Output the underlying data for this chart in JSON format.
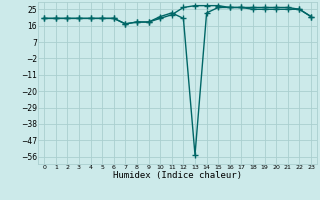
{
  "xlabel": "Humidex (Indice chaleur)",
  "x": [
    0,
    1,
    2,
    3,
    4,
    5,
    6,
    7,
    8,
    9,
    10,
    11,
    12,
    13,
    14,
    15,
    16,
    17,
    18,
    19,
    20,
    21,
    22,
    23
  ],
  "y_line1": [
    20,
    20,
    20,
    20,
    20,
    20,
    20,
    17,
    18,
    18,
    20,
    22,
    26,
    27,
    27,
    27,
    26,
    26,
    26,
    26,
    26,
    26,
    25,
    21
  ],
  "y_line2": [
    20,
    20,
    20,
    20,
    20,
    20,
    20,
    17,
    18,
    18,
    21,
    23,
    20,
    -55,
    23,
    26,
    26,
    26,
    25,
    25,
    25,
    25,
    25,
    21
  ],
  "yticks": [
    25,
    16,
    7,
    -2,
    -11,
    -20,
    -29,
    -38,
    -47,
    -56
  ],
  "ylim": [
    -60,
    29
  ],
  "xlim": [
    -0.5,
    23.5
  ],
  "bg_color": "#cceaea",
  "grid_color": "#aacfcf",
  "line_color": "#006666",
  "marker": "+",
  "markersize": 4,
  "linewidth": 1.0
}
